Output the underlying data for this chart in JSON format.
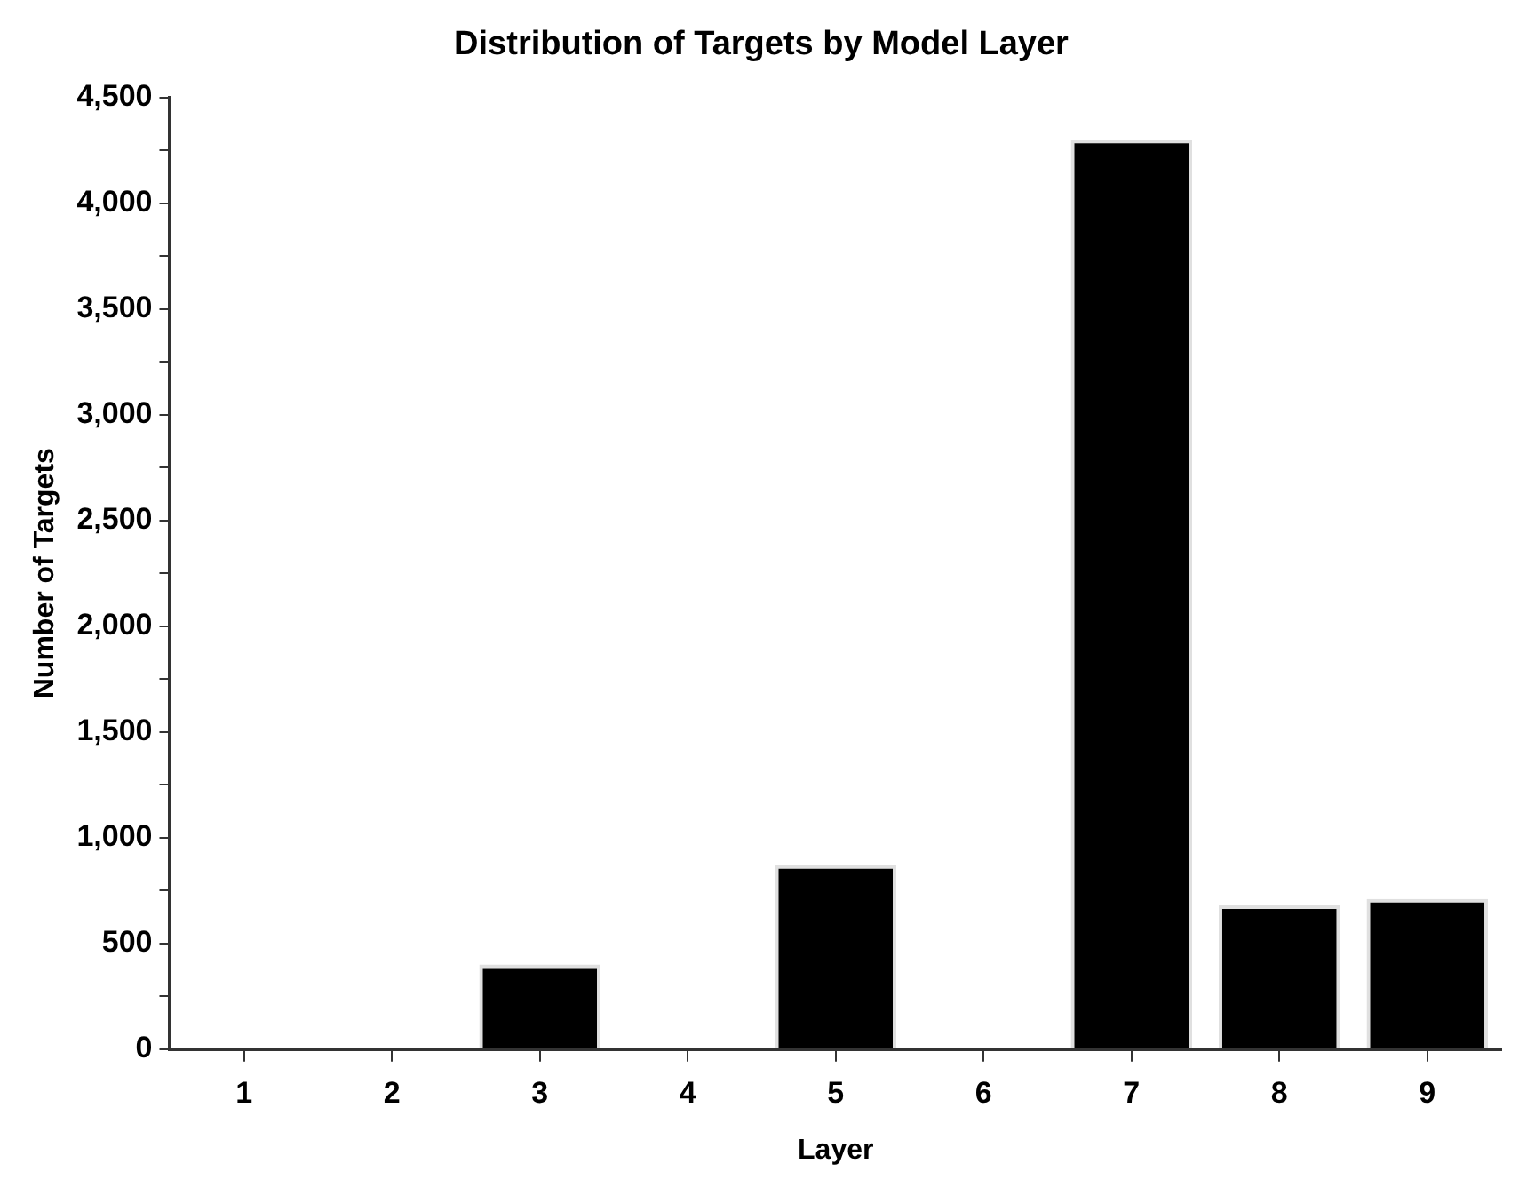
{
  "chart_data": {
    "type": "bar",
    "title": "Distribution of Targets by Model Layer",
    "xlabel": "Layer",
    "ylabel": "Number of Targets",
    "categories": [
      "1",
      "2",
      "3",
      "4",
      "5",
      "6",
      "7",
      "8",
      "9"
    ],
    "values": [
      0,
      0,
      400,
      0,
      870,
      0,
      4300,
      680,
      710
    ],
    "color": "#000000",
    "ylim": [
      0,
      4500
    ],
    "yticks": [
      {
        "value": 0,
        "label": "0"
      },
      {
        "value": 250,
        "label": null
      },
      {
        "value": 500,
        "label": "500"
      },
      {
        "value": 750,
        "label": null
      },
      {
        "value": 1000,
        "label": "1,000"
      },
      {
        "value": 1250,
        "label": null
      },
      {
        "value": 1500,
        "label": "1,500"
      },
      {
        "value": 1750,
        "label": null
      },
      {
        "value": 2000,
        "label": "2,000"
      },
      {
        "value": 2250,
        "label": null
      },
      {
        "value": 2500,
        "label": "2,500"
      },
      {
        "value": 2750,
        "label": null
      },
      {
        "value": 3000,
        "label": "3,000"
      },
      {
        "value": 3250,
        "label": null
      },
      {
        "value": 3500,
        "label": "3,500"
      },
      {
        "value": 3750,
        "label": null
      },
      {
        "value": 4000,
        "label": "4,000"
      },
      {
        "value": 4250,
        "label": null
      },
      {
        "value": 4500,
        "label": "4,500"
      }
    ]
  }
}
